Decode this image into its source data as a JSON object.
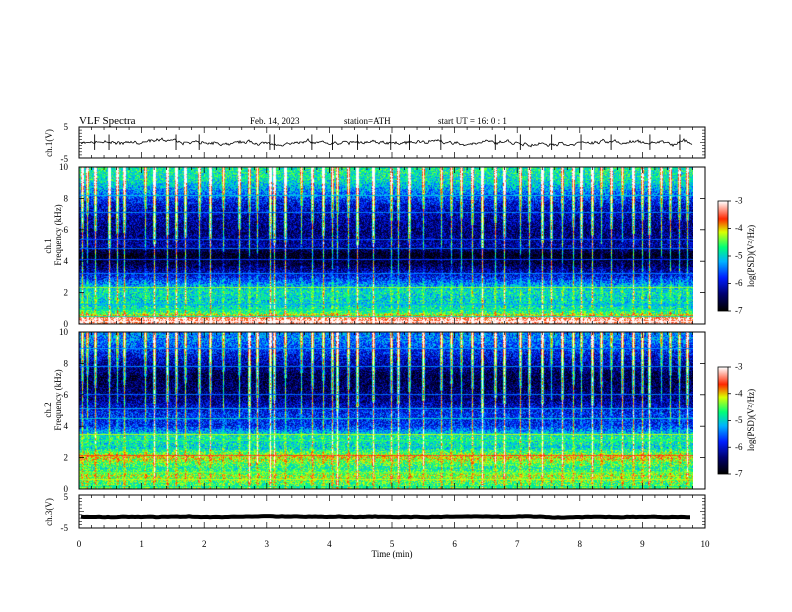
{
  "header": {
    "title": "VLF  Spectra",
    "date": "Feb. 14, 2023",
    "station": "station=ATH",
    "start": "start  UT  =    16: 0   : 1"
  },
  "chart_data": [
    {
      "type": "line",
      "name": "ch1-waveform",
      "ylabel": "ch.1(V)",
      "ylim": [
        -5,
        5
      ],
      "yticks": [
        "5",
        "-5"
      ],
      "baseline": 0,
      "amplitude": 0.8,
      "spikes": [
        0.25,
        0.48,
        1.55,
        1.92,
        3.05,
        3.12,
        3.72,
        4.05,
        4.45,
        4.98,
        5.28,
        5.78,
        6.65,
        7.05,
        7.55,
        8.02,
        8.5,
        9.12,
        9.6
      ]
    },
    {
      "type": "heatmap",
      "name": "ch1-spectrogram",
      "ylabel": "Frequency  (kHz)",
      "channel": "ch.1",
      "ylim": [
        0,
        10
      ],
      "yticks": [
        "0",
        "2",
        "4",
        "6",
        "8",
        "10"
      ],
      "colorbar": {
        "label": "log(PSD)(V²/Hz)",
        "ticks": [
          "-3",
          "-4",
          "-5",
          "-6",
          "-7"
        ],
        "range": [
          -7,
          -3
        ]
      },
      "bands": [
        {
          "f": 0.3,
          "v": -3.3
        },
        {
          "f": 0.7,
          "v": -4.7
        },
        {
          "f": 1.1,
          "v": -5.0
        },
        {
          "f": 1.6,
          "v": -5.0
        },
        {
          "f": 2.1,
          "v": -4.9
        },
        {
          "f": 3.0,
          "v": -5.9
        },
        {
          "f": 3.8,
          "v": -6.6
        },
        {
          "f": 4.4,
          "v": -6.9
        },
        {
          "f": 5.0,
          "v": -6.2
        },
        {
          "f": 5.8,
          "v": -6.4
        },
        {
          "f": 6.8,
          "v": -6.2
        },
        {
          "f": 7.6,
          "v": -6.0
        },
        {
          "f": 8.4,
          "v": -5.4
        },
        {
          "f": 9.2,
          "v": -4.9
        },
        {
          "f": 9.8,
          "v": -4.8
        }
      ]
    },
    {
      "type": "heatmap",
      "name": "ch2-spectrogram",
      "ylabel": "Frequency  (kHz)",
      "channel": "ch.2",
      "ylim": [
        0,
        10
      ],
      "yticks": [
        "0",
        "2",
        "4",
        "6",
        "8",
        "10"
      ],
      "colorbar": {
        "label": "log(PSD)(V²/Hz)",
        "ticks": [
          "-3",
          "-4",
          "-5",
          "-6",
          "-7"
        ],
        "range": [
          -7,
          -3
        ]
      },
      "bands": [
        {
          "f": 0.3,
          "v": -4.6
        },
        {
          "f": 0.8,
          "v": -4.3
        },
        {
          "f": 1.3,
          "v": -4.8
        },
        {
          "f": 2.0,
          "v": -4.1
        },
        {
          "f": 2.6,
          "v": -5.0
        },
        {
          "f": 3.3,
          "v": -4.8
        },
        {
          "f": 4.0,
          "v": -5.8
        },
        {
          "f": 4.8,
          "v": -5.8
        },
        {
          "f": 5.6,
          "v": -6.3
        },
        {
          "f": 6.4,
          "v": -6.5
        },
        {
          "f": 7.2,
          "v": -6.6
        },
        {
          "f": 8.0,
          "v": -6.2
        },
        {
          "f": 8.8,
          "v": -5.8
        },
        {
          "f": 9.5,
          "v": -5.4
        }
      ]
    },
    {
      "type": "line",
      "name": "ch3-waveform",
      "ylabel": "ch.3(V)",
      "ylim": [
        -5,
        5
      ],
      "yticks": [
        "5",
        "-5"
      ],
      "baseline": -1.6,
      "amplitude": 0.15
    }
  ],
  "xaxis": {
    "label": "Time  (min)",
    "range": [
      0,
      10
    ],
    "ticks": [
      "0",
      "1",
      "2",
      "3",
      "4",
      "5",
      "6",
      "7",
      "8",
      "9",
      "10"
    ],
    "data_end": 9.8
  },
  "sferics": [
    0.05,
    0.12,
    0.25,
    0.48,
    0.6,
    0.72,
    1.05,
    1.2,
    1.4,
    1.55,
    1.7,
    1.92,
    2.1,
    2.3,
    2.55,
    2.72,
    2.85,
    3.05,
    3.12,
    3.3,
    3.55,
    3.72,
    3.9,
    4.05,
    4.12,
    4.3,
    4.45,
    4.7,
    4.98,
    5.1,
    5.28,
    5.5,
    5.78,
    5.95,
    6.1,
    6.28,
    6.45,
    6.65,
    6.8,
    7.05,
    7.2,
    7.4,
    7.55,
    7.72,
    7.9,
    8.02,
    8.2,
    8.35,
    8.5,
    8.68,
    8.85,
    9.0,
    9.12,
    9.3,
    9.45,
    9.6,
    9.72
  ],
  "colors": {
    "axes": "#000000",
    "colormap": [
      "#000000",
      "#0000ff",
      "#00c8ff",
      "#00ff64",
      "#ffff00",
      "#ff0000",
      "#ffffff"
    ]
  }
}
